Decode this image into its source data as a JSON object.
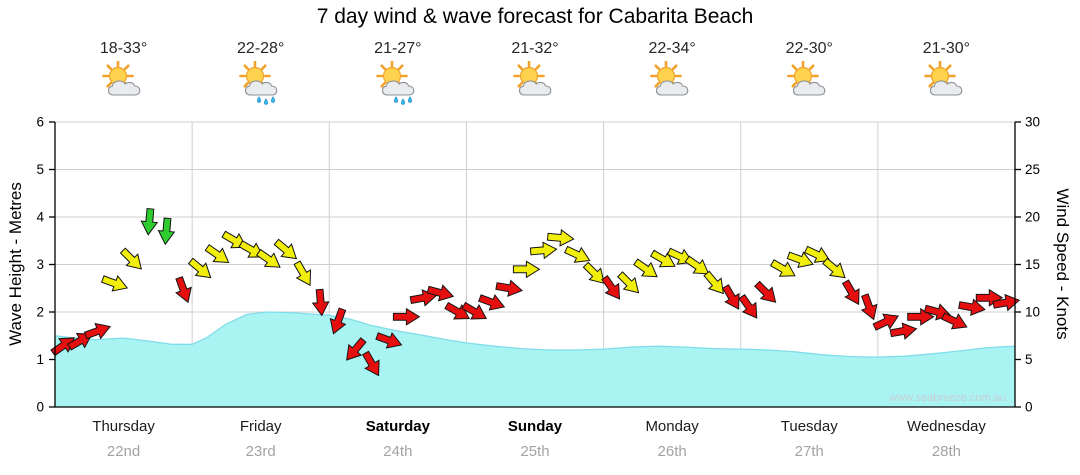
{
  "title": "7 day wind & wave forecast for Cabarita Beach",
  "watermark": "www.seabreeze.com.au",
  "days": [
    {
      "name": "Thursday",
      "date": "22nd",
      "temp": "18-33°",
      "icon": "sun-cloud",
      "bold": false
    },
    {
      "name": "Friday",
      "date": "23rd",
      "temp": "22-28°",
      "icon": "sun-cloud-rain",
      "bold": false
    },
    {
      "name": "Saturday",
      "date": "24th",
      "temp": "21-27°",
      "icon": "sun-cloud-rain",
      "bold": true
    },
    {
      "name": "Sunday",
      "date": "25th",
      "temp": "21-32°",
      "icon": "sun-cloud",
      "bold": true
    },
    {
      "name": "Monday",
      "date": "26th",
      "temp": "22-34°",
      "icon": "sun-cloud",
      "bold": false
    },
    {
      "name": "Tuesday",
      "date": "27th",
      "temp": "22-30°",
      "icon": "sun-cloud",
      "bold": false
    },
    {
      "name": "Wednesday",
      "date": "28th",
      "temp": "21-30°",
      "icon": "sun-cloud",
      "bold": false
    }
  ],
  "chart_data": {
    "type": "area",
    "title": "7 day wind & wave forecast for Cabarita Beach",
    "left_axis": {
      "label": "Wave Height - Metres",
      "min": 0,
      "max": 6,
      "ticks": [
        0,
        1,
        2,
        3,
        4,
        5,
        6
      ]
    },
    "right_axis": {
      "label": "Wind Speed - Knots",
      "min": 0,
      "max": 30,
      "ticks": [
        0,
        5,
        10,
        15,
        20,
        25,
        30
      ]
    },
    "x_axis": {
      "days": [
        "Thursday",
        "Friday",
        "Saturday",
        "Sunday",
        "Monday",
        "Tuesday",
        "Wednesday"
      ],
      "grid": true
    },
    "wave_height_m": {
      "name": "Wave Height (metres)",
      "fill": "#a9f3f3",
      "edge": "#7fdde9",
      "points": [
        [
          0,
          1.5
        ],
        [
          0.15,
          1.45
        ],
        [
          0.3,
          1.42
        ],
        [
          0.5,
          1.45
        ],
        [
          0.7,
          1.38
        ],
        [
          0.85,
          1.32
        ],
        [
          1.0,
          1.32
        ],
        [
          1.1,
          1.45
        ],
        [
          1.25,
          1.75
        ],
        [
          1.4,
          1.95
        ],
        [
          1.55,
          2.0
        ],
        [
          1.75,
          1.98
        ],
        [
          1.9,
          1.95
        ],
        [
          2.0,
          1.93
        ],
        [
          2.15,
          1.85
        ],
        [
          2.3,
          1.72
        ],
        [
          2.5,
          1.6
        ],
        [
          2.7,
          1.5
        ],
        [
          2.85,
          1.42
        ],
        [
          3.0,
          1.35
        ],
        [
          3.2,
          1.28
        ],
        [
          3.4,
          1.23
        ],
        [
          3.6,
          1.2
        ],
        [
          3.8,
          1.2
        ],
        [
          4.0,
          1.22
        ],
        [
          4.2,
          1.26
        ],
        [
          4.4,
          1.28
        ],
        [
          4.6,
          1.26
        ],
        [
          4.8,
          1.23
        ],
        [
          5.0,
          1.22
        ],
        [
          5.2,
          1.2
        ],
        [
          5.4,
          1.16
        ],
        [
          5.6,
          1.1
        ],
        [
          5.8,
          1.06
        ],
        [
          6.0,
          1.05
        ],
        [
          6.2,
          1.07
        ],
        [
          6.4,
          1.12
        ],
        [
          6.6,
          1.18
        ],
        [
          6.8,
          1.25
        ],
        [
          7.0,
          1.28
        ]
      ]
    },
    "wind_knots": {
      "name": "Wind Speed (knots)",
      "colors": {
        "light": "#e60f0f",
        "moderate": "#f2ee0c",
        "fresh": "#2fcc2f"
      },
      "thresholds": {
        "moderate_min": 13,
        "fresh_min": 18
      },
      "points": [
        [
          0.0625,
          6.5,
          -35
        ],
        [
          0.1875,
          7,
          -30
        ],
        [
          0.3125,
          8,
          -20
        ],
        [
          0.4375,
          13,
          20
        ],
        [
          0.5625,
          15.5,
          45
        ],
        [
          0.6875,
          19.5,
          95
        ],
        [
          0.8125,
          18.5,
          95
        ],
        [
          0.9375,
          12.3,
          70
        ],
        [
          1.0625,
          14.5,
          40
        ],
        [
          1.1875,
          16,
          35
        ],
        [
          1.3125,
          17.5,
          30
        ],
        [
          1.4375,
          16.5,
          30
        ],
        [
          1.5625,
          15.5,
          35
        ],
        [
          1.6875,
          16.5,
          40
        ],
        [
          1.8125,
          14,
          60
        ],
        [
          1.9375,
          11,
          85
        ],
        [
          2.0625,
          9,
          110
        ],
        [
          2.1875,
          6,
          130
        ],
        [
          2.3125,
          4.5,
          60
        ],
        [
          2.4375,
          7,
          20
        ],
        [
          2.5625,
          9.5,
          0
        ],
        [
          2.6875,
          11.5,
          -10
        ],
        [
          2.8125,
          12,
          15
        ],
        [
          2.9375,
          10,
          30
        ],
        [
          3.0625,
          10,
          30
        ],
        [
          3.1875,
          11,
          20
        ],
        [
          3.3125,
          12.5,
          10
        ],
        [
          3.4375,
          14.5,
          0
        ],
        [
          3.5625,
          16.5,
          -5
        ],
        [
          3.6875,
          17.8,
          5
        ],
        [
          3.8125,
          16,
          25
        ],
        [
          3.9375,
          14,
          45
        ],
        [
          4.0625,
          12.5,
          55
        ],
        [
          4.1875,
          13,
          45
        ],
        [
          4.3125,
          14.5,
          35
        ],
        [
          4.4375,
          15.5,
          30
        ],
        [
          4.5625,
          15.8,
          25
        ],
        [
          4.6875,
          14.8,
          35
        ],
        [
          4.8125,
          13,
          50
        ],
        [
          4.9375,
          11.5,
          60
        ],
        [
          5.0625,
          10.5,
          55
        ],
        [
          5.1875,
          12,
          45
        ],
        [
          5.3125,
          14.5,
          30
        ],
        [
          5.4375,
          15.5,
          20
        ],
        [
          5.5625,
          16,
          25
        ],
        [
          5.6875,
          14.5,
          40
        ],
        [
          5.8125,
          12,
          60
        ],
        [
          5.9375,
          10.5,
          70
        ],
        [
          6.0625,
          9,
          -25
        ],
        [
          6.1875,
          8,
          -10
        ],
        [
          6.3125,
          9.5,
          0
        ],
        [
          6.4375,
          10,
          15
        ],
        [
          6.5625,
          9,
          25
        ],
        [
          6.6875,
          10.5,
          10
        ],
        [
          6.8125,
          11.5,
          0
        ],
        [
          6.9375,
          11,
          -10
        ]
      ]
    }
  }
}
